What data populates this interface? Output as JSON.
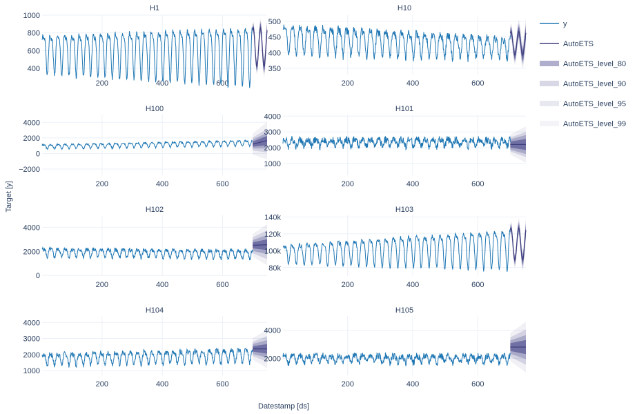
{
  "chart_data": {
    "type": "line",
    "xlabel": "Datestamp [ds]",
    "ylabel": "Target [y]",
    "colors": {
      "y": "#1f77b4",
      "autoets": "#3f3f7f",
      "band": "#4c4c8f",
      "grid": "#ebf0f8",
      "zero": "#ebf0f8"
    },
    "legend": {
      "placement": "right",
      "entries": [
        {
          "label": "y",
          "kind": "line",
          "color": "#1f77b4"
        },
        {
          "label": "AutoETS",
          "kind": "line",
          "color": "#3f3f7f"
        },
        {
          "label": "AutoETS_level_80",
          "kind": "band",
          "opacity": 0.28
        },
        {
          "label": "AutoETS_level_90",
          "kind": "band",
          "opacity": 0.14
        },
        {
          "label": "AutoETS_level_95",
          "kind": "band",
          "opacity": 0.08
        },
        {
          "label": "AutoETS_level_99",
          "kind": "band",
          "opacity": 0.04
        }
      ]
    },
    "xlim": [
      1,
      748
    ],
    "xticks": [
      200,
      400,
      600
    ],
    "train_end": 700,
    "horizon": 48,
    "panels": [
      {
        "name": "H1",
        "ylim": [
          330,
          1000
        ],
        "yticks": [
          400,
          600,
          800,
          1000
        ],
        "yticklabels": [
          "400",
          "600",
          "800",
          "1000"
        ],
        "series": {
          "kind": "sine",
          "base": 600,
          "amp": 200,
          "amp_growth": 110,
          "period": 24,
          "noise": 25,
          "trend": 0,
          "seed": 1
        },
        "forecast": {
          "kind": "sine",
          "base": 640,
          "amp": 220,
          "period": 24,
          "phase_from_train": true
        },
        "bands": [
          55,
          80,
          95,
          130
        ]
      },
      {
        "name": "H10",
        "ylim": [
          330,
          520
        ],
        "yticks": [
          350,
          400,
          450,
          500
        ],
        "yticklabels": [
          "350",
          "400",
          "450",
          "500"
        ],
        "series": {
          "kind": "sine",
          "base": 450,
          "amp": 45,
          "amp_growth": -15,
          "period": 24,
          "noise": 12,
          "trend": -30,
          "seed": 2
        },
        "forecast": {
          "kind": "sine",
          "base": 430,
          "amp": 38,
          "period": 24,
          "phase_from_train": true
        },
        "bands": [
          18,
          26,
          34,
          46
        ]
      },
      {
        "name": "H100",
        "ylim": [
          -2800,
          5000
        ],
        "yticks": [
          -2000,
          0,
          2000,
          4000
        ],
        "yticklabels": [
          "−2000",
          "0",
          "2000",
          "4000"
        ],
        "series": {
          "kind": "sine",
          "base": 900,
          "amp": 250,
          "amp_growth": 80,
          "period": 24,
          "noise": 90,
          "trend": 500,
          "seed": 3
        },
        "forecast": {
          "kind": "linear",
          "start": 1200,
          "end": 1650
        },
        "bands": [
          600,
          1000,
          1500,
          2400
        ]
      },
      {
        "name": "H101",
        "ylim": [
          250,
          4100
        ],
        "yticks": [
          1000,
          2000,
          3000,
          4000
        ],
        "yticklabels": [
          "1000",
          "2000",
          "3000",
          "4000"
        ],
        "series": {
          "kind": "sine",
          "base": 2350,
          "amp": 200,
          "amp_growth": 0,
          "period": 24,
          "noise": 230,
          "trend": 0,
          "seed": 4
        },
        "forecast": {
          "kind": "linear",
          "start": 2200,
          "end": 2200
        },
        "bands": [
          350,
          600,
          800,
          1150
        ]
      },
      {
        "name": "H102",
        "ylim": [
          -50,
          5000
        ],
        "yticks": [
          0,
          2000,
          4000
        ],
        "yticklabels": [
          "0",
          "2000",
          "4000"
        ],
        "series": {
          "kind": "sine",
          "base": 1950,
          "amp": 330,
          "amp_growth": 0,
          "period": 24,
          "noise": 150,
          "trend": -150,
          "seed": 5
        },
        "forecast": {
          "kind": "linear",
          "start": 2500,
          "end": 2550
        },
        "bands": [
          450,
          800,
          1200,
          1700
        ]
      },
      {
        "name": "H103",
        "ylim": [
          70000,
          142000
        ],
        "yticks": [
          80000,
          100000,
          120000,
          140000
        ],
        "yticklabels": [
          "80k",
          "100k",
          "120k",
          "140k"
        ],
        "series": {
          "kind": "sine",
          "base": 98000,
          "amp": 10000,
          "amp_growth": 12000,
          "period": 24,
          "noise": 2200,
          "trend": 8000,
          "seed": 6
        },
        "forecast": {
          "kind": "sine",
          "base": 108000,
          "amp": 19000,
          "period": 24,
          "phase_from_train": true
        },
        "bands": [
          5000,
          8000,
          10500,
          14000
        ]
      },
      {
        "name": "H104",
        "ylim": [
          700,
          4400
        ],
        "yticks": [
          1000,
          2000,
          3000,
          4000
        ],
        "yticklabels": [
          "1000",
          "2000",
          "3000",
          "4000"
        ],
        "series": {
          "kind": "sine",
          "base": 1750,
          "amp": 320,
          "amp_growth": 80,
          "period": 24,
          "noise": 150,
          "trend": 250,
          "seed": 7
        },
        "forecast": {
          "kind": "linear",
          "start": 2350,
          "end": 2350
        },
        "bands": [
          300,
          550,
          800,
          1200
        ]
      },
      {
        "name": "H105",
        "ylim": [
          800,
          5000
        ],
        "yticks": [
          2000,
          4000
        ],
        "yticklabels": [
          "2000",
          "4000"
        ],
        "series": {
          "kind": "sine",
          "base": 2000,
          "amp": 240,
          "amp_growth": 0,
          "period": 24,
          "noise": 230,
          "trend": 0,
          "seed": 8
        },
        "forecast": {
          "kind": "linear",
          "start": 2800,
          "end": 2800
        },
        "bands": [
          500,
          850,
          1250,
          1800
        ]
      }
    ]
  }
}
